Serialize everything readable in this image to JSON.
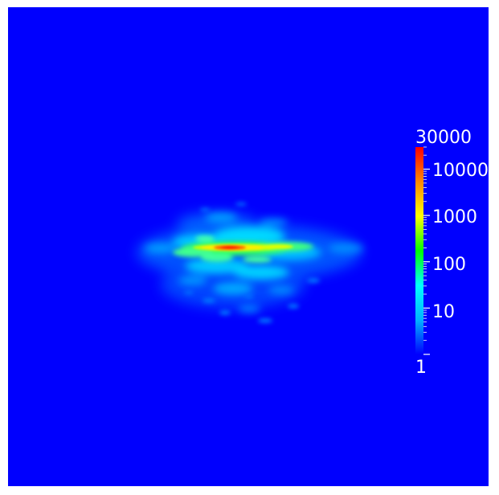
{
  "colorbar": {
    "scale": "log",
    "range": [
      1,
      30000
    ],
    "max_label": "30000",
    "min_label": "1",
    "tick_labels": [
      "10000",
      "1000",
      "100",
      "10"
    ],
    "colors": [
      "#0000ff",
      "#00b4ff",
      "#00ffff",
      "#00ff00",
      "#ffff00",
      "#ff8800",
      "#ff0000"
    ]
  },
  "background_color": "#0000fe"
}
